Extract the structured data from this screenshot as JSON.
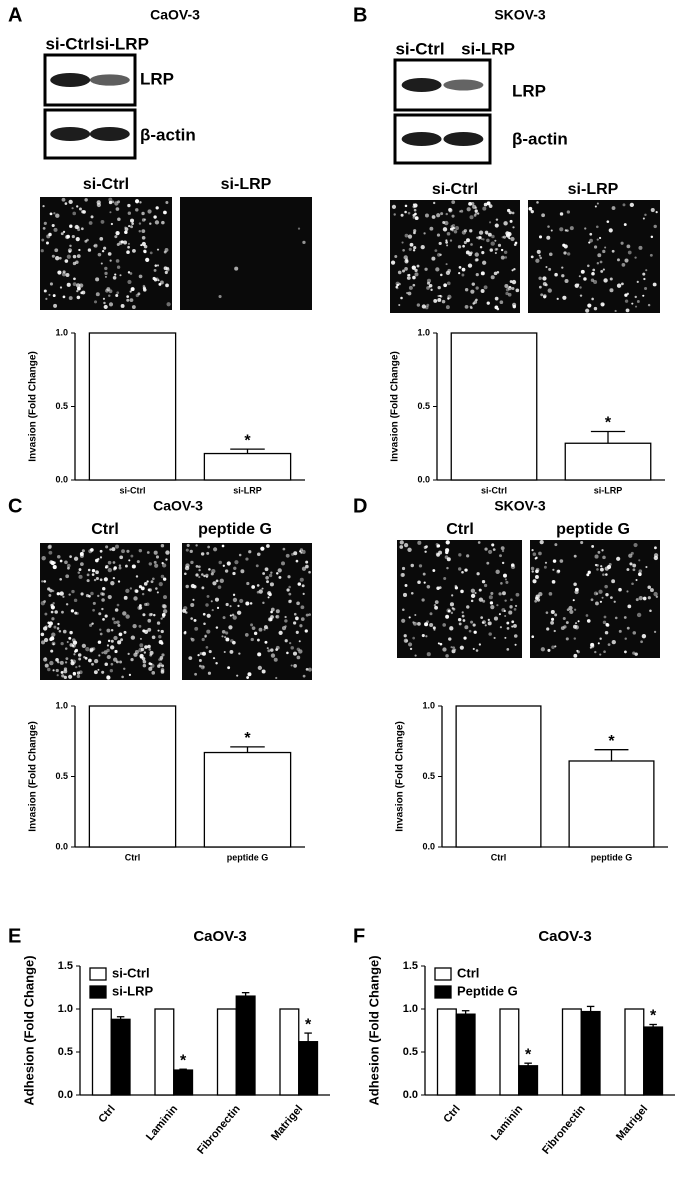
{
  "panels": [
    {
      "letter": "A",
      "cell_line": "CaOV-3",
      "blot": {
        "lanes": [
          "si-Ctrl",
          "si-LRP"
        ],
        "bands": [
          "LRP",
          "β-actin"
        ]
      },
      "images": [
        "si-Ctrl",
        "si-LRP"
      ]
    },
    {
      "letter": "B",
      "cell_line": "SKOV-3",
      "blot": {
        "lanes": [
          "si-Ctrl",
          "si-LRP"
        ],
        "bands": [
          "LRP",
          "β-actin"
        ]
      },
      "images": [
        "si-Ctrl",
        "si-LRP"
      ]
    },
    {
      "letter": "C",
      "cell_line": "CaOV-3",
      "images": [
        "Ctrl",
        "peptide G"
      ]
    },
    {
      "letter": "D",
      "cell_line": "SKOV-3",
      "images": [
        "Ctrl",
        "peptide G"
      ]
    },
    {
      "letter": "E"
    },
    {
      "letter": "F"
    }
  ],
  "chart_data": [
    {
      "type": "bar",
      "ylabel": "Invasion (Fold Change)",
      "categories": [
        "si-Ctrl",
        "si-LRP"
      ],
      "values": [
        1.0,
        0.18
      ],
      "errors": [
        0,
        0.03
      ],
      "color": "#ffffff",
      "ylim": [
        0,
        1.0
      ],
      "yticks": [
        {
          "value": 0,
          "label": "0.0"
        },
        {
          "value": 0.5,
          "label": "0.5"
        },
        {
          "value": 1.0,
          "label": "1.0"
        }
      ],
      "annotations": [
        {
          "text": "*",
          "category": "si-LRP"
        }
      ]
    },
    {
      "type": "bar",
      "ylabel": "Invasion (Fold Change)",
      "categories": [
        "si-Ctrl",
        "si-LRP"
      ],
      "values": [
        1.0,
        0.25
      ],
      "errors": [
        0,
        0.08
      ],
      "color": "#ffffff",
      "ylim": [
        0,
        1.0
      ],
      "yticks": [
        {
          "value": 0,
          "label": "0.0"
        },
        {
          "value": 0.5,
          "label": "0.5"
        },
        {
          "value": 1.0,
          "label": "1.0"
        }
      ],
      "annotations": [
        {
          "text": "*",
          "category": "si-LRP"
        }
      ]
    },
    {
      "type": "bar",
      "ylabel": "Invasion (Fold Change)",
      "categories": [
        "Ctrl",
        "peptide G"
      ],
      "values": [
        1.0,
        0.67
      ],
      "errors": [
        0,
        0.04
      ],
      "color": "#ffffff",
      "ylim": [
        0,
        1.0
      ],
      "yticks": [
        {
          "value": 0,
          "label": "0.0"
        },
        {
          "value": 0.5,
          "label": "0.5"
        },
        {
          "value": 1.0,
          "label": "1.0"
        }
      ],
      "annotations": [
        {
          "text": "*",
          "category": "peptide G"
        }
      ]
    },
    {
      "type": "bar",
      "ylabel": "Invasion (Fold Change)",
      "categories": [
        "Ctrl",
        "peptide G"
      ],
      "values": [
        1.0,
        0.61
      ],
      "errors": [
        0,
        0.08
      ],
      "color": "#ffffff",
      "ylim": [
        0,
        1.0
      ],
      "yticks": [
        {
          "value": 0,
          "label": "0.0"
        },
        {
          "value": 0.5,
          "label": "0.5"
        },
        {
          "value": 1.0,
          "label": "1.0"
        }
      ],
      "annotations": [
        {
          "text": "*",
          "category": "peptide G"
        }
      ]
    },
    {
      "type": "bar",
      "title": "CaOV-3",
      "ylabel": "Adhesion (Fold Change)",
      "categories": [
        "Ctrl",
        "Laminin",
        "Fibronectin",
        "Matrigel"
      ],
      "series": [
        {
          "name": "si-Ctrl",
          "color": "#ffffff",
          "values": [
            1.0,
            1.0,
            1.0,
            1.0
          ],
          "errors": [
            0,
            0,
            0,
            0
          ]
        },
        {
          "name": "si-LRP",
          "color": "#000000",
          "values": [
            0.88,
            0.29,
            1.15,
            0.62
          ],
          "errors": [
            0.03,
            0.01,
            0.04,
            0.1
          ]
        }
      ],
      "ylim": [
        0,
        1.5
      ],
      "yticks": [
        {
          "value": 0,
          "label": "0.0"
        },
        {
          "value": 0.5,
          "label": "0.5"
        },
        {
          "value": 1.0,
          "label": "1.0"
        },
        {
          "value": 1.5,
          "label": "1.5"
        }
      ],
      "legend": "upper left",
      "annotations": [
        {
          "text": "*",
          "series": "si-LRP",
          "category": "Laminin"
        },
        {
          "text": "*",
          "series": "si-LRP",
          "category": "Matrigel"
        }
      ]
    },
    {
      "type": "bar",
      "title": "CaOV-3",
      "ylabel": "Adhesion (Fold Change)",
      "categories": [
        "Ctrl",
        "Laminin",
        "Fibronectin",
        "Matrigel"
      ],
      "series": [
        {
          "name": "Ctrl",
          "color": "#ffffff",
          "values": [
            1.0,
            1.0,
            1.0,
            1.0
          ],
          "errors": [
            0,
            0,
            0,
            0
          ]
        },
        {
          "name": "Peptide G",
          "color": "#000000",
          "values": [
            0.94,
            0.34,
            0.97,
            0.79
          ],
          "errors": [
            0.04,
            0.03,
            0.06,
            0.03
          ]
        }
      ],
      "ylim": [
        0,
        1.5
      ],
      "yticks": [
        {
          "value": 0,
          "label": "0.0"
        },
        {
          "value": 0.5,
          "label": "0.5"
        },
        {
          "value": 1.0,
          "label": "1.0"
        },
        {
          "value": 1.5,
          "label": "1.5"
        }
      ],
      "legend": "upper left",
      "annotations": [
        {
          "text": "*",
          "series": "Peptide G",
          "category": "Laminin"
        },
        {
          "text": "*",
          "series": "Peptide G",
          "category": "Matrigel"
        }
      ]
    }
  ]
}
